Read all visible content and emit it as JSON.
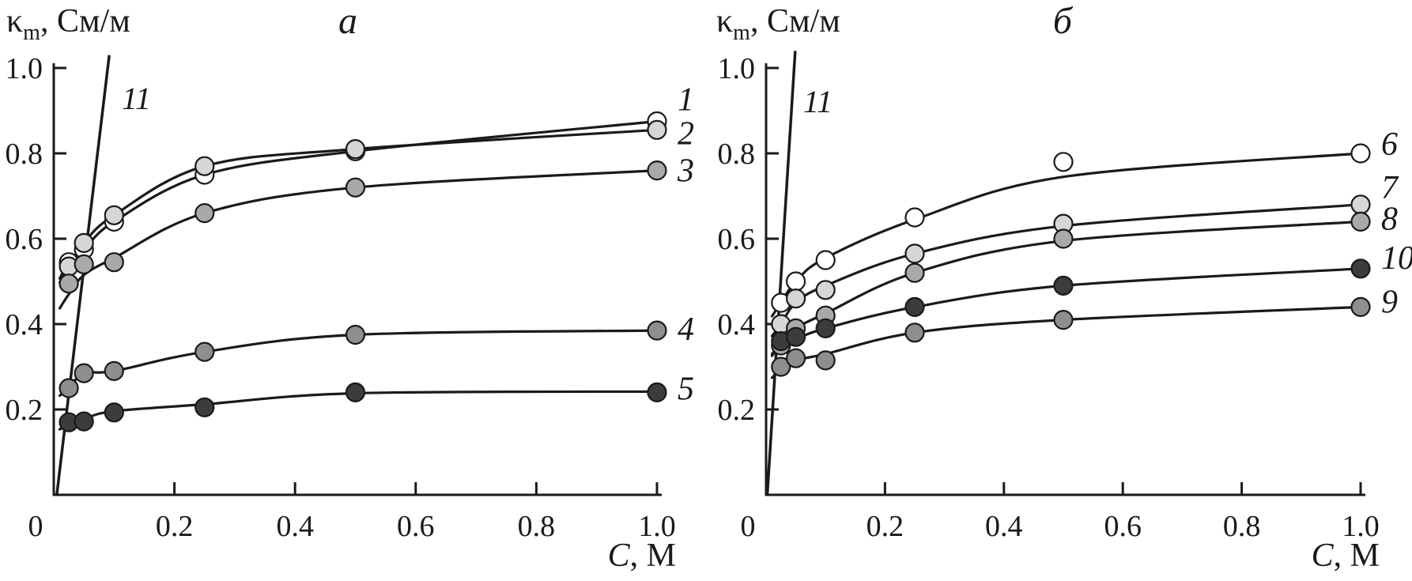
{
  "figure": {
    "background": "#ffffff",
    "ink": "#1a1a1a",
    "marker_fills": {
      "open": "#ffffff",
      "light_gray": "#d6d6d6",
      "medium_gray": "#a9a9a9",
      "gray": "#8e8e8e",
      "dark": "#3c3c3c"
    }
  },
  "chart_data": [
    {
      "panel_label": "a",
      "type": "scatter",
      "ylabel": {
        "symbol": "κ",
        "subscript": "m",
        "rest": ", См/м"
      },
      "xlabel": {
        "symbol": "C",
        "rest": ", М"
      },
      "xlim": [
        0,
        1.05
      ],
      "ylim": [
        0,
        1.03
      ],
      "grid": "off",
      "legend": "curve-end-labels",
      "x_tick_labels": [
        "0",
        "0.2",
        "0.4",
        "0.6",
        "0.8",
        "1.0"
      ],
      "y_tick_labels": [
        "0.2",
        "0.4",
        "0.6",
        "0.8",
        "1.0"
      ],
      "x": [
        0.025,
        0.05,
        0.1,
        0.25,
        0.5,
        1.0
      ],
      "series": [
        {
          "label": "1",
          "marker": "open-circle",
          "fill": "#ffffff",
          "values": [
            0.545,
            0.575,
            0.64,
            0.75,
            0.805,
            0.875
          ],
          "label_dy": -26
        },
        {
          "label": "2",
          "marker": "light-gray-circle",
          "fill": "#d6d6d6",
          "values": [
            0.535,
            0.59,
            0.655,
            0.77,
            0.81,
            0.855
          ],
          "label_dy": 6
        },
        {
          "label": "3",
          "marker": "medium-gray-circle",
          "fill": "#a9a9a9",
          "values": [
            0.495,
            0.54,
            0.545,
            0.66,
            0.72,
            0.76
          ],
          "curve_values": [
            0.47,
            0.515,
            0.555,
            0.66,
            0.72,
            0.76
          ],
          "label_dy": 2
        },
        {
          "label": "4",
          "marker": "gray-circle",
          "fill": "#8e8e8e",
          "values": [
            0.25,
            0.285,
            0.29,
            0.335,
            0.375,
            0.385
          ],
          "label_dy": 0
        },
        {
          "label": "5",
          "marker": "dark-circle",
          "fill": "#3c3c3c",
          "values": [
            0.17,
            0.172,
            0.193,
            0.205,
            0.24,
            0.24
          ],
          "curve_values": [
            0.165,
            0.178,
            0.196,
            0.212,
            0.238,
            0.242
          ],
          "label_dy": -3
        }
      ],
      "ref_line": {
        "label": "11",
        "x1": 0.005,
        "y1": 0,
        "x2": 0.092,
        "y2": 1.03
      }
    },
    {
      "panel_label": "б",
      "type": "scatter",
      "ylabel": {
        "symbol": "κ",
        "subscript": "m",
        "rest": ", См/м"
      },
      "xlabel": {
        "symbol": "C",
        "rest": ", М"
      },
      "xlim": [
        0,
        1.05
      ],
      "ylim": [
        0,
        1.03
      ],
      "grid": "off",
      "legend": "curve-end-labels",
      "x_tick_labels": [
        "0",
        "0.2",
        "0.4",
        "0.6",
        "0.8",
        "1.0"
      ],
      "y_tick_labels": [
        "0.2",
        "0.4",
        "0.6",
        "0.8",
        "1.0"
      ],
      "x": [
        0.025,
        0.05,
        0.1,
        0.25,
        0.5,
        1.0
      ],
      "series": [
        {
          "label": "6",
          "marker": "open-circle",
          "fill": "#ffffff",
          "values": [
            0.45,
            0.5,
            0.55,
            0.65,
            0.78,
            0.8
          ],
          "curve_values": [
            0.45,
            0.5,
            0.555,
            0.645,
            0.745,
            0.8
          ],
          "label_dy": -10
        },
        {
          "label": "7",
          "marker": "light-gray-circle",
          "fill": "#d6d6d6",
          "values": [
            0.4,
            0.46,
            0.48,
            0.565,
            0.635,
            0.68
          ],
          "curve_values": [
            0.4,
            0.45,
            0.49,
            0.565,
            0.63,
            0.68
          ],
          "label_dy": -20
        },
        {
          "label": "8",
          "marker": "medium-gray-circle",
          "fill": "#a9a9a9",
          "values": [
            0.35,
            0.39,
            0.42,
            0.52,
            0.6,
            0.64
          ],
          "curve_values": [
            0.355,
            0.39,
            0.425,
            0.52,
            0.595,
            0.64
          ],
          "label_dy": -2
        },
        {
          "label": "10",
          "marker": "dark-circle",
          "fill": "#3c3c3c",
          "values": [
            0.36,
            0.37,
            0.39,
            0.44,
            0.49,
            0.53
          ],
          "curve_values": [
            0.35,
            0.365,
            0.39,
            0.44,
            0.49,
            0.53
          ],
          "label_dy": -12
        },
        {
          "label": "9",
          "marker": "gray-circle",
          "fill": "#8e8e8e",
          "values": [
            0.3,
            0.32,
            0.315,
            0.38,
            0.41,
            0.44
          ],
          "curve_values": [
            0.295,
            0.315,
            0.33,
            0.38,
            0.41,
            0.44
          ],
          "label_dy": -5
        }
      ],
      "ref_line": {
        "label": "11",
        "x1": 0.002,
        "y1": 0,
        "x2": 0.049,
        "y2": 1.04
      }
    }
  ]
}
